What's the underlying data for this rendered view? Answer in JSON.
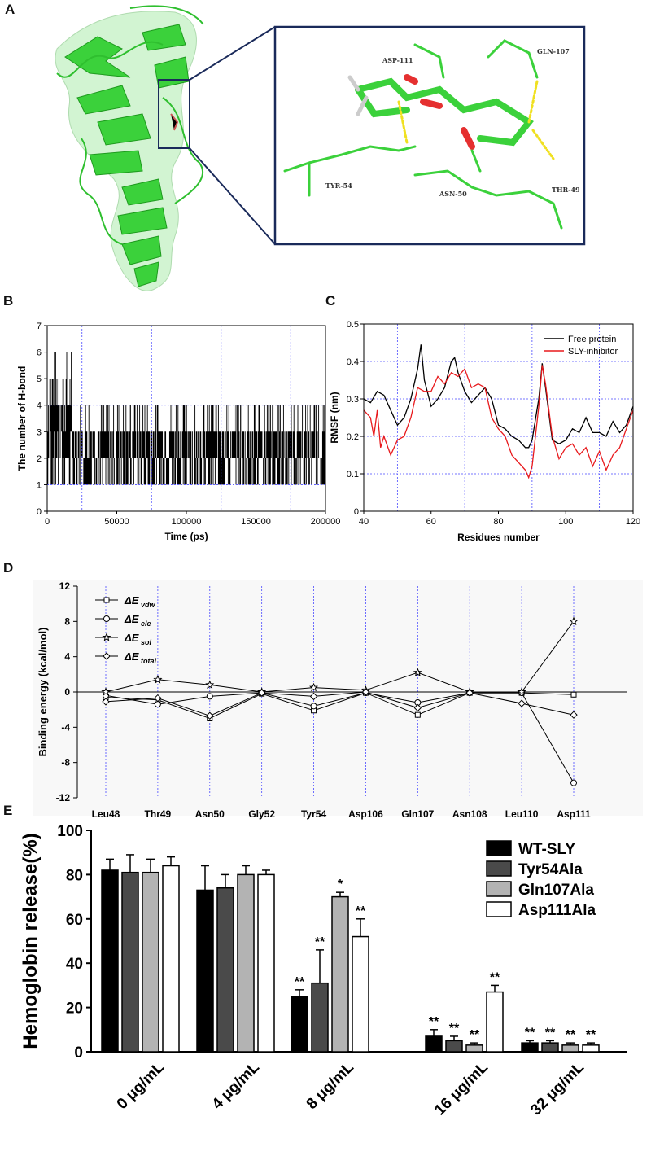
{
  "panel_labels": {
    "a": "A",
    "b": "B",
    "c": "C",
    "d": "D",
    "e": "E"
  },
  "structure": {
    "residue_labels": [
      "ASP-111",
      "GLN-107",
      "TYR-54",
      "ASN-50",
      "THR-49"
    ]
  },
  "chart_data": [
    {
      "id": "B",
      "type": "line",
      "title": "",
      "xlabel": "Time (ps)",
      "ylabel": "The number of H-bond",
      "xlim": [
        0,
        200000
      ],
      "ylim": [
        0,
        7
      ],
      "xticks": [
        0,
        50000,
        100000,
        150000,
        200000
      ],
      "yticks": [
        0,
        1,
        2,
        3,
        4,
        5,
        6,
        7
      ],
      "grid": true,
      "description_values": {
        "early_range": [
          1,
          6
        ],
        "late_range": [
          1,
          4
        ],
        "typical": [
          1,
          3
        ]
      }
    },
    {
      "id": "C",
      "type": "line",
      "xlabel": "Residues number",
      "ylabel": "RMSF (nm)",
      "xlim": [
        40,
        120
      ],
      "ylim": [
        0.0,
        0.5
      ],
      "xticks": [
        40,
        60,
        80,
        100,
        120
      ],
      "yticks": [
        0.0,
        0.1,
        0.2,
        0.3,
        0.4,
        0.5
      ],
      "grid": true,
      "legend": "top-right",
      "series": [
        {
          "name": "Free protein",
          "color": "#000000",
          "x": [
            40,
            42,
            44,
            46,
            48,
            50,
            52,
            54,
            56,
            57,
            58,
            60,
            62,
            64,
            66,
            67,
            68,
            70,
            72,
            74,
            76,
            78,
            80,
            82,
            84,
            86,
            88,
            89,
            90,
            92,
            93,
            94,
            96,
            98,
            100,
            102,
            104,
            106,
            108,
            110,
            112,
            114,
            116,
            118,
            120
          ],
          "y": [
            0.3,
            0.29,
            0.32,
            0.31,
            0.27,
            0.23,
            0.25,
            0.3,
            0.38,
            0.445,
            0.35,
            0.28,
            0.3,
            0.33,
            0.4,
            0.41,
            0.37,
            0.32,
            0.29,
            0.31,
            0.33,
            0.3,
            0.23,
            0.22,
            0.2,
            0.19,
            0.17,
            0.17,
            0.19,
            0.3,
            0.395,
            0.33,
            0.19,
            0.18,
            0.19,
            0.22,
            0.21,
            0.25,
            0.21,
            0.21,
            0.2,
            0.24,
            0.21,
            0.23,
            0.28
          ]
        },
        {
          "name": "SLY-inhibitor",
          "color": "#e8191c",
          "x": [
            40,
            42,
            43,
            44,
            45,
            46,
            48,
            50,
            52,
            54,
            56,
            58,
            60,
            62,
            64,
            66,
            68,
            70,
            72,
            74,
            76,
            78,
            80,
            82,
            84,
            86,
            88,
            89,
            90,
            92,
            93,
            94,
            96,
            98,
            100,
            102,
            104,
            106,
            108,
            110,
            112,
            114,
            116,
            118,
            120
          ],
          "y": [
            0.27,
            0.25,
            0.2,
            0.27,
            0.17,
            0.2,
            0.15,
            0.19,
            0.2,
            0.25,
            0.33,
            0.32,
            0.32,
            0.36,
            0.34,
            0.37,
            0.36,
            0.38,
            0.33,
            0.34,
            0.33,
            0.25,
            0.22,
            0.2,
            0.15,
            0.13,
            0.11,
            0.09,
            0.12,
            0.28,
            0.39,
            0.34,
            0.2,
            0.14,
            0.17,
            0.18,
            0.15,
            0.17,
            0.12,
            0.16,
            0.11,
            0.15,
            0.17,
            0.22,
            0.27
          ]
        }
      ]
    },
    {
      "id": "D",
      "type": "line",
      "ylabel": "Binding energy (kcal/mol)",
      "ylim": [
        -12,
        12
      ],
      "yticks": [
        -12,
        -8,
        -4,
        0,
        4,
        8,
        12
      ],
      "categories": [
        "Leu48",
        "Thr49",
        "Asn50",
        "Gly52",
        "Tyr54",
        "Asp106",
        "Gln107",
        "Asn108",
        "Leu110",
        "Asp111"
      ],
      "series": [
        {
          "name": "ΔE",
          "sub": "vdw",
          "marker": "square",
          "values": [
            -0.6,
            -0.9,
            -3.0,
            -0.2,
            -2.1,
            -0.1,
            -2.6,
            -0.1,
            -0.1,
            -0.3
          ]
        },
        {
          "name": "ΔE",
          "sub": "ele",
          "marker": "circle",
          "values": [
            -0.4,
            -1.4,
            -0.5,
            -0.1,
            -1.6,
            -0.1,
            -1.2,
            -0.1,
            -0.1,
            -10.3
          ]
        },
        {
          "name": "ΔE",
          "sub": "sol",
          "marker": "star",
          "values": [
            0.0,
            1.4,
            0.8,
            0.0,
            0.5,
            0.2,
            2.2,
            0.0,
            0.0,
            8.0
          ]
        },
        {
          "name": "ΔE",
          "sub": "total",
          "marker": "diamond",
          "values": [
            -1.1,
            -0.7,
            -2.7,
            -0.1,
            -0.5,
            0.0,
            -1.8,
            -0.1,
            -1.3,
            -2.6
          ]
        }
      ]
    },
    {
      "id": "E",
      "type": "bar",
      "ylabel": "Hemoglobin release(%)",
      "ylim": [
        0,
        100
      ],
      "yticks": [
        0,
        20,
        40,
        60,
        80,
        100
      ],
      "categories": [
        "0 μg/mL",
        "4 μg/mL",
        "8 μg/mL",
        "16 μg/mL",
        "32 μg/mL"
      ],
      "legend": "top-right",
      "series": [
        {
          "name": "WT-SLY",
          "color": "#000000",
          "values": [
            82,
            73,
            25,
            7,
            4
          ],
          "errors": [
            5,
            11,
            3,
            3,
            1
          ],
          "sig": [
            "",
            "",
            "**",
            "**",
            "**"
          ]
        },
        {
          "name": "Tyr54Ala",
          "color": "#4a4a4a",
          "values": [
            81,
            74,
            31,
            5,
            4
          ],
          "errors": [
            8,
            6,
            15,
            2,
            1
          ],
          "sig": [
            "",
            "",
            "**",
            "**",
            "**"
          ]
        },
        {
          "name": "Gln107Ala",
          "color": "#b3b3b3",
          "values": [
            81,
            80,
            70,
            3,
            3
          ],
          "errors": [
            6,
            4,
            2,
            1,
            1
          ],
          "sig": [
            "",
            "",
            "*",
            "**",
            "**"
          ]
        },
        {
          "name": "Asp111Ala",
          "color": "#ffffff",
          "values": [
            84,
            80,
            52,
            27,
            3
          ],
          "errors": [
            4,
            2,
            8,
            3,
            1
          ],
          "sig": [
            "",
            "",
            "**",
            "**",
            "**"
          ]
        }
      ]
    }
  ]
}
